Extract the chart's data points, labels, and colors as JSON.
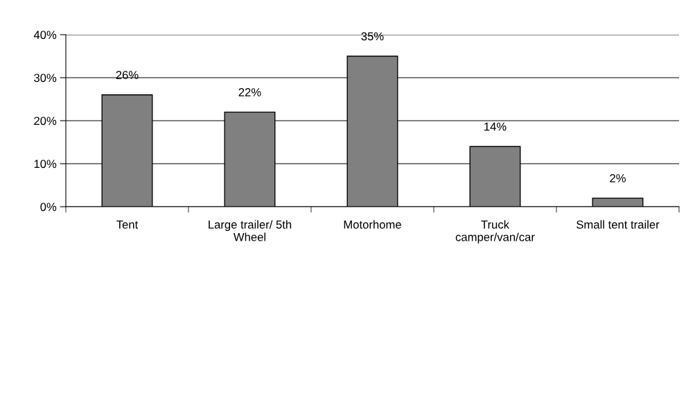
{
  "chart_data": {
    "type": "bar",
    "categories": [
      "Tent",
      "Large trailer/ 5th\nWheel",
      "Motorhome",
      "Truck\ncamper/van/car",
      "Small tent trailer"
    ],
    "values": [
      26,
      22,
      35,
      14,
      2
    ],
    "value_labels": [
      "26%",
      "22%",
      "35%",
      "14%",
      "2%"
    ],
    "color": "#808080",
    "ylim": [
      0,
      40
    ],
    "yticks": [
      {
        "value": 0,
        "label": "0%"
      },
      {
        "value": 10,
        "label": "10%"
      },
      {
        "value": 20,
        "label": "20%"
      },
      {
        "value": 30,
        "label": "30%"
      },
      {
        "value": 40,
        "label": "40%"
      }
    ],
    "grid": "y"
  }
}
